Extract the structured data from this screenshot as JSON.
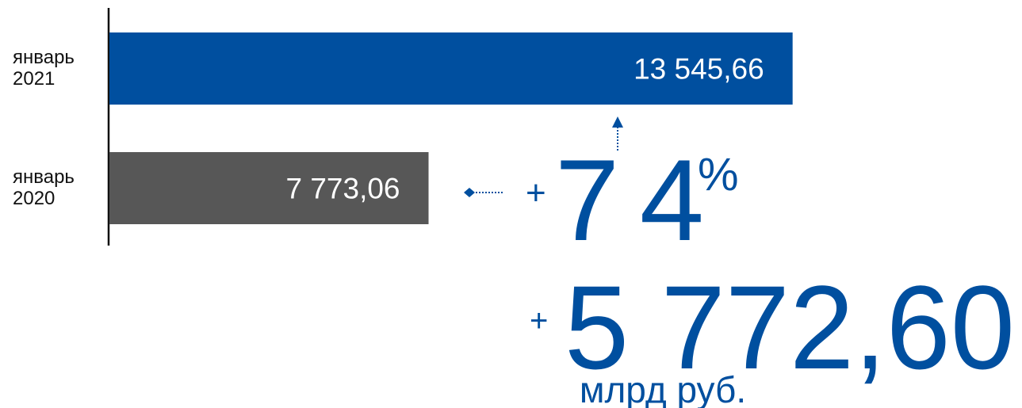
{
  "chart_data": {
    "type": "hbar",
    "categories": [
      "январь 2021",
      "январь 2020"
    ],
    "values": [
      13545.66,
      7773.06
    ],
    "value_labels": [
      "13 545,66",
      "7 773,06"
    ],
    "colors": [
      "#004f9f",
      "#575757"
    ],
    "xlim": [
      2700,
      13600
    ],
    "annotations": {
      "percent_change": {
        "sign": "+",
        "value": "74",
        "unit": "%"
      },
      "absolute_change": {
        "sign": "+",
        "value": "5 772,60",
        "unit": "млрд руб."
      }
    }
  }
}
